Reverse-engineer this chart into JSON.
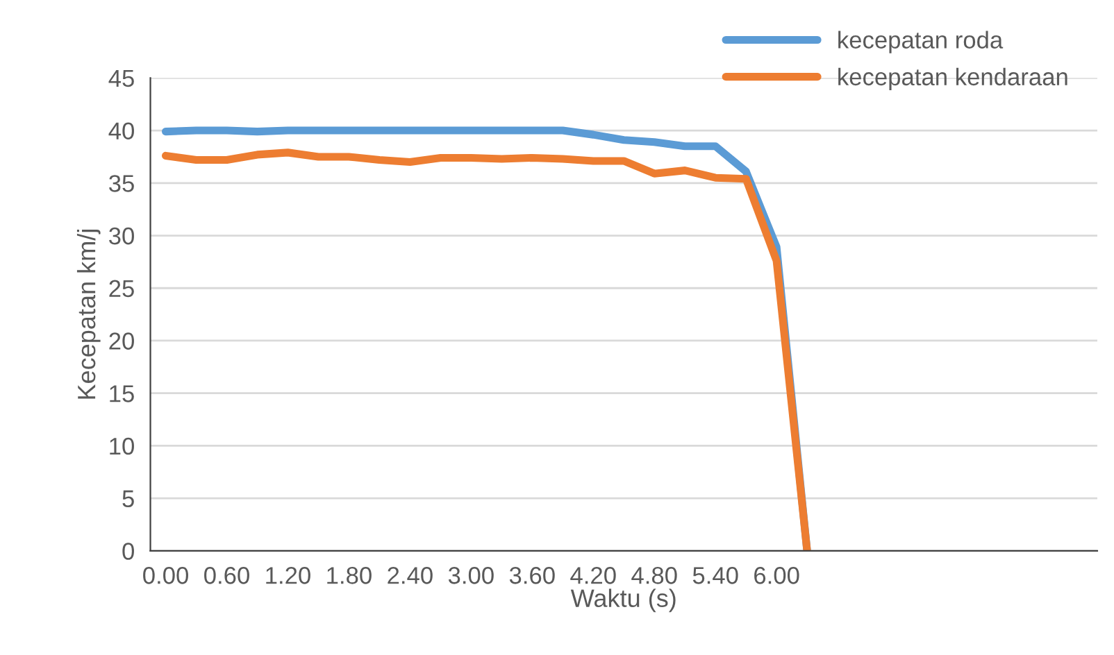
{
  "chart_data": {
    "type": "line",
    "xlabel": "Waktu (s)",
    "ylabel": "Kecepatan km/j",
    "categories": [
      "0.00",
      null,
      "0.60",
      null,
      "1.20",
      null,
      "1.80",
      null,
      "2.40",
      null,
      "3.00",
      null,
      "3.60",
      null,
      "4.20",
      null,
      "4.80",
      null,
      "5.40",
      null,
      "6.00",
      null,
      null,
      null,
      null,
      null,
      null,
      null,
      null,
      null,
      null
    ],
    "series": [
      {
        "name": "kecepatan roda",
        "color": "#5b9bd5",
        "values": [
          39.9,
          40,
          40,
          39.9,
          40,
          40,
          40,
          40,
          40,
          40,
          40,
          40,
          40,
          40,
          39.6,
          39.1,
          38.9,
          38.5,
          38.5,
          36.1,
          28.9,
          0,
          null,
          null,
          null,
          null,
          null,
          null,
          null,
          null,
          null
        ]
      },
      {
        "name": "kecepatan kendaraan",
        "color": "#ed7d31",
        "values": [
          37.6,
          37.2,
          37.2,
          37.7,
          37.9,
          37.5,
          37.5,
          37.2,
          37.0,
          37.4,
          37.4,
          37.3,
          37.4,
          37.3,
          37.1,
          37.1,
          35.9,
          36.2,
          35.5,
          35.4,
          27.6,
          0,
          null,
          null,
          null,
          null,
          null,
          null,
          null,
          null,
          null
        ]
      }
    ],
    "ylim": [
      0,
      45
    ],
    "yticks": [
      0,
      5,
      10,
      15,
      20,
      25,
      30,
      35,
      40,
      45
    ],
    "grid": "y",
    "legend": "top right",
    "marker": "none",
    "line_style": "solid"
  }
}
